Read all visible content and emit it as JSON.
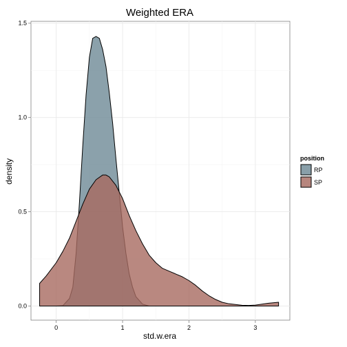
{
  "chart_data": {
    "type": "area",
    "title": "Weighted ERA",
    "xlabel": "std.w.era",
    "ylabel": "density",
    "xlim": [
      -0.38,
      3.52
    ],
    "ylim": [
      -0.075,
      1.51
    ],
    "x_ticks": [
      0,
      1,
      2,
      3
    ],
    "x_tick_labels": [
      "0",
      "1",
      "2",
      "3"
    ],
    "y_ticks": [
      0.0,
      0.5,
      1.0,
      1.5
    ],
    "y_tick_labels": [
      "0.0",
      "0.5",
      "1.0",
      "1.5"
    ],
    "grid": true,
    "legend": {
      "title": "position",
      "placement": "right"
    },
    "series": [
      {
        "name": "RP",
        "color": "#6e8a96",
        "x": [
          -0.25,
          0.0,
          0.1,
          0.2,
          0.25,
          0.3,
          0.35,
          0.4,
          0.45,
          0.5,
          0.55,
          0.6,
          0.65,
          0.7,
          0.75,
          0.8,
          0.85,
          0.9,
          0.95,
          1.0,
          1.05,
          1.1,
          1.15,
          1.2,
          1.3,
          1.4,
          3.35
        ],
        "y": [
          0.0,
          0.0,
          0.002,
          0.04,
          0.1,
          0.28,
          0.55,
          0.85,
          1.12,
          1.32,
          1.42,
          1.43,
          1.42,
          1.36,
          1.27,
          1.13,
          0.97,
          0.78,
          0.6,
          0.42,
          0.28,
          0.17,
          0.1,
          0.05,
          0.01,
          0.0,
          0.0
        ]
      },
      {
        "name": "SP",
        "color": "#a86a60",
        "x": [
          -0.25,
          -0.15,
          0.0,
          0.1,
          0.2,
          0.3,
          0.4,
          0.5,
          0.6,
          0.7,
          0.75,
          0.8,
          0.9,
          1.0,
          1.1,
          1.2,
          1.3,
          1.4,
          1.5,
          1.6,
          1.7,
          1.8,
          1.9,
          2.0,
          2.1,
          2.2,
          2.3,
          2.4,
          2.5,
          2.6,
          2.7,
          2.8,
          2.9,
          3.0,
          3.1,
          3.2,
          3.35
        ],
        "y": [
          0.12,
          0.16,
          0.23,
          0.29,
          0.36,
          0.45,
          0.54,
          0.62,
          0.67,
          0.695,
          0.695,
          0.685,
          0.64,
          0.57,
          0.48,
          0.4,
          0.33,
          0.27,
          0.23,
          0.2,
          0.185,
          0.17,
          0.155,
          0.135,
          0.11,
          0.08,
          0.055,
          0.035,
          0.02,
          0.012,
          0.008,
          0.004,
          0.003,
          0.005,
          0.01,
          0.015,
          0.02
        ]
      }
    ]
  }
}
